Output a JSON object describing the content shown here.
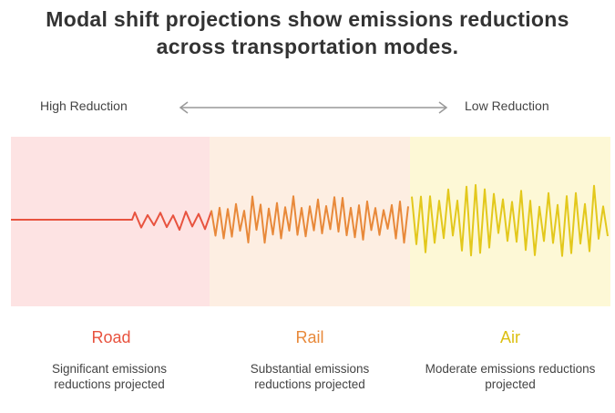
{
  "title": "Modal shift projections show emissions reductions across transportation modes.",
  "scale": {
    "left": "High Reduction",
    "right": "Low Reduction"
  },
  "modes": [
    {
      "name": "Road",
      "description": "Significant emissions reductions projected"
    },
    {
      "name": "Rail",
      "description": "Substantial emissions reductions projected"
    },
    {
      "name": "Air",
      "description": "Moderate emissions reductions projected"
    }
  ]
}
